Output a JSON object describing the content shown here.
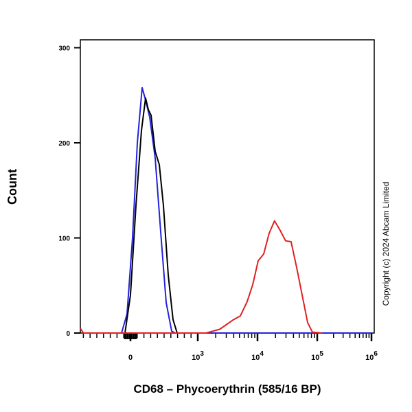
{
  "chart_data": {
    "type": "line",
    "title": "",
    "xlabel": "CD68 – Phycoerythrin (585/16 BP)",
    "ylabel": "Count",
    "x_scale": "biexponential",
    "xlim": [
      -745,
      1000000
    ],
    "ylim": [
      0,
      310
    ],
    "x_ticks": [
      {
        "value": 0,
        "base": "0",
        "exp": ""
      },
      {
        "value": 1000,
        "base": "10",
        "exp": "3"
      },
      {
        "value": 10000,
        "base": "10",
        "exp": "4"
      },
      {
        "value": 100000,
        "base": "10",
        "exp": "5"
      },
      {
        "value": 1000000,
        "base": "10",
        "exp": "6"
      }
    ],
    "y_ticks": [
      "0",
      "100",
      "200",
      "300"
    ],
    "grid": false,
    "legend": "none",
    "watermark": "Copyright (c) 2024 Abcam Limited",
    "series": [
      {
        "color": "#2222dd",
        "x": [
          -133,
          -51,
          31,
          102,
          173,
          224,
          286,
          367,
          459,
          531,
          612,
          663,
          1000000
        ],
        "y": [
          0,
          20,
          100,
          200,
          258,
          245,
          227,
          184,
          97,
          32,
          2,
          0,
          0
        ]
      },
      {
        "color": "#000000",
        "x": [
          -82,
          0,
          82,
          163,
          224,
          265,
          306,
          367,
          429,
          490,
          561,
          633,
          694
        ],
        "y": [
          0,
          40,
          134,
          213,
          247,
          235,
          229,
          191,
          177,
          134,
          61,
          14,
          0
        ]
      },
      {
        "color": "#e02020",
        "x": [
          -745,
          -700,
          1374,
          2330,
          3960,
          5160,
          6710,
          8320,
          10260,
          12700,
          15700,
          19300,
          23900,
          29500,
          36500,
          45200,
          55800,
          69000,
          82800,
          123000
        ],
        "y": [
          5,
          0,
          0,
          4,
          14,
          18,
          33,
          51,
          76,
          83,
          105,
          118,
          108,
          97,
          96,
          69,
          40,
          11,
          1,
          0
        ]
      }
    ]
  }
}
